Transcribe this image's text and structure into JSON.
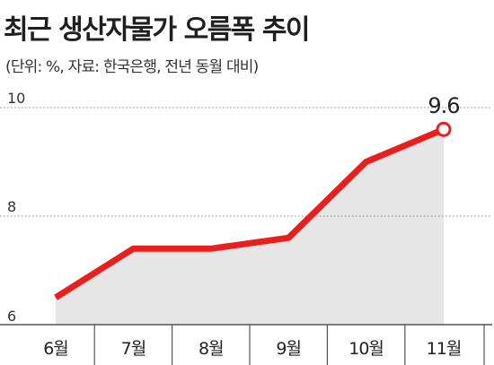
{
  "title": "최근 생산자물가 오름폭 추이",
  "subtitle": "(단위: %, 자료: 한국은행, 전년 동월 대비)",
  "colors": {
    "line": "#e8201d",
    "area": "#e6e6e6",
    "grid": "#888888",
    "axis": "#555555"
  },
  "chart_data": {
    "type": "area",
    "categories": [
      "6월",
      "7월",
      "8월",
      "9월",
      "10월",
      "11월"
    ],
    "series": [
      {
        "values": [
          6.5,
          7.4,
          7.4,
          7.6,
          9.0,
          9.6
        ]
      }
    ],
    "ylim": [
      6,
      10
    ],
    "yticks": [
      6,
      8,
      10
    ],
    "yticks_labels": [
      "6",
      "8",
      "10"
    ],
    "data_labels": [
      {
        "index": 5,
        "text": "9.6"
      }
    ],
    "grid": true
  }
}
